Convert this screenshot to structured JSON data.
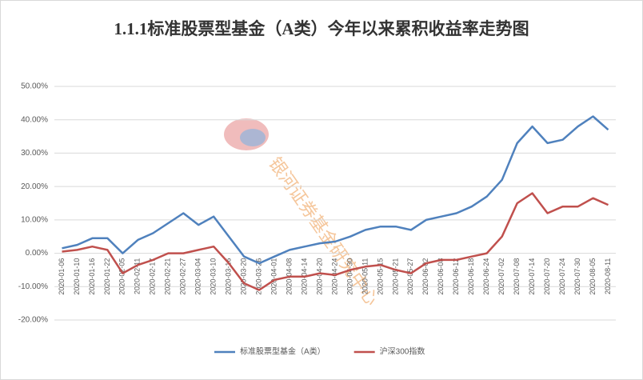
{
  "chart_data": {
    "type": "line",
    "title": "1.1.1标准股票型基金（A类）今年以来累积收益率走势图",
    "watermark": "银河证券基金研究中心",
    "categories": [
      "2020-01-06",
      "2020-01-10",
      "2020-01-16",
      "2020-01-22",
      "2020-02-05",
      "2020-02-11",
      "2020-02-17",
      "2020-02-21",
      "2020-02-27",
      "2020-03-04",
      "2020-03-10",
      "2020-03-16",
      "2020-03-20",
      "2020-03-26",
      "2020-04-01",
      "2020-04-08",
      "2020-04-14",
      "2020-04-20",
      "2020-04-24",
      "2020-04-30",
      "2020-05-11",
      "2020-05-15",
      "2020-05-21",
      "2020-05-27",
      "2020-06-02",
      "2020-06-08",
      "2020-06-12",
      "2020-06-18",
      "2020-06-24",
      "2020-07-02",
      "2020-07-08",
      "2020-07-14",
      "2020-07-20",
      "2020-07-24",
      "2020-07-30",
      "2020-08-05",
      "2020-08-11"
    ],
    "series": [
      {
        "name": "标准股票型基金（A类）",
        "color": "#4f81bd",
        "values": [
          1.5,
          2.5,
          4.5,
          4.5,
          0,
          4,
          6,
          9,
          12,
          8.5,
          11,
          5,
          -1,
          -3,
          -1,
          1,
          2,
          3,
          3.5,
          5,
          7,
          8,
          8,
          7,
          10,
          11,
          12,
          14,
          17,
          22,
          33,
          38,
          33,
          34,
          38,
          41,
          37
        ]
      },
      {
        "name": "沪深300指数",
        "color": "#c0504d",
        "values": [
          0.5,
          1,
          2,
          1,
          -6,
          -3.5,
          -2,
          0,
          0,
          1,
          2,
          -3,
          -9,
          -11,
          -8,
          -7,
          -7,
          -6,
          -6.5,
          -5,
          -4,
          -3.5,
          -5,
          -6,
          -3,
          -2,
          -2,
          -1,
          0,
          5,
          15,
          18,
          12,
          14,
          14,
          16.5,
          14.5
        ]
      }
    ],
    "ylim": [
      -20,
      50
    ],
    "yticks": [
      {
        "value": -20,
        "label": "-20.00%"
      },
      {
        "value": -10,
        "label": "-10.00%"
      },
      {
        "value": 0,
        "label": "0.00%"
      },
      {
        "value": 10,
        "label": "10.00%"
      },
      {
        "value": 20,
        "label": "20.00%"
      },
      {
        "value": 30,
        "label": "30.00%"
      },
      {
        "value": 40,
        "label": "40.00%"
      },
      {
        "value": 50,
        "label": "50.00%"
      }
    ],
    "grid": true,
    "legend": "bottom"
  }
}
